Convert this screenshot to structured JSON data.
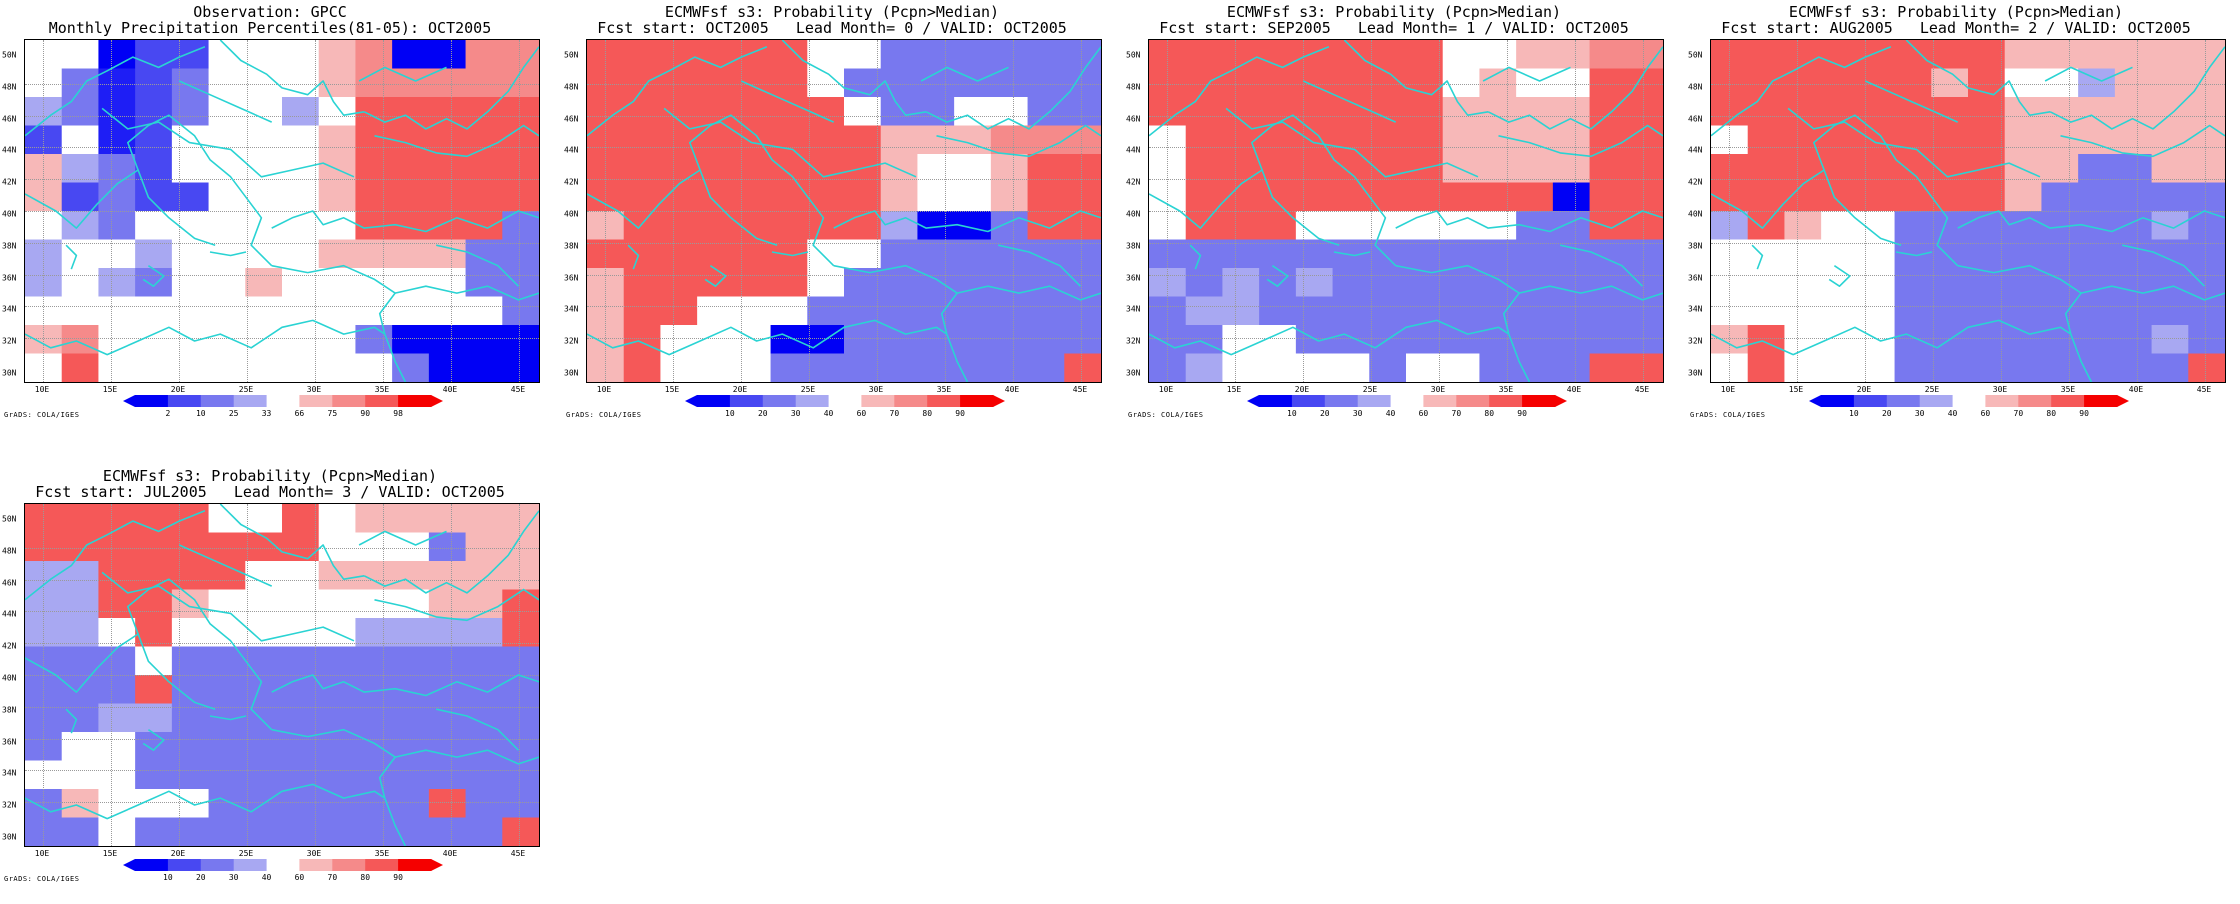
{
  "colors": {
    "coast": "#2ad3d3",
    "palette": [
      "#0000f5",
      "#1e1ef5",
      "#4848f2",
      "#7878ef",
      "#a8a8f2",
      "#ffffff",
      "#ffffff",
      "#f7b8b8",
      "#f58a8a",
      "#f55858",
      "#f52626",
      "#f50000"
    ]
  },
  "axes": {
    "lat_labels": [
      "30N",
      "32N",
      "34N",
      "36N",
      "38N",
      "40N",
      "42N",
      "44N",
      "46N",
      "48N",
      "50N"
    ],
    "lon_labels": [
      "10E",
      "15E",
      "20E",
      "25E",
      "30E",
      "35E",
      "40E",
      "45E"
    ]
  },
  "credit": "GrADS: COLA/IGES",
  "colorbars": {
    "obs": [
      "2",
      "10",
      "25",
      "33",
      "66",
      "75",
      "90",
      "98"
    ],
    "prob": [
      "10",
      "20",
      "30",
      "40",
      "60",
      "70",
      "80",
      "90"
    ]
  },
  "panels": [
    {
      "title1": "Observation: GPCC",
      "title2": "Monthly Precipitation Percentiles(81-05): OCT2005",
      "colorbar": "obs",
      "grid": [
        "55022556780088",
        "53123555788888",
        "43123554599999",
        "25125555799999",
        "74325555799999",
        "72322555799999",
        "54355555599993",
        "45545555777733",
        "45435575555533",
        "55555555555553",
        "78555555530000",
        "59555555553000"
      ]
    },
    {
      "title1": "ECMWFsf s3: Probability (Pcpn>Median)",
      "title2": "Fcst start: OCT2005   Lead Month= 0 / VALID: OCT2005",
      "colorbar": "prob",
      "grid": [
        "99999955333333",
        "99999953333333",
        "99999995335533",
        "99999999777888",
        "99999999755799",
        "99999999755799",
        "79999999400399",
        "99999955333333",
        "79999953333333",
        "79955533333333",
        "79555003333333",
        "79555333333339"
      ]
    },
    {
      "title1": "ECMWFsf s3: Probability (Pcpn>Median)",
      "title2": "Fcst start: SEP2005   Lead Month= 1 / VALID: OCT2005",
      "colorbar": "prob",
      "grid": [
        "99999999557788",
        "99999999575599",
        "99999999777799",
        "59999999777799",
        "59999999777799",
        "59999999999099",
        "59995555553399",
        "33333333333333",
        "43434333333333",
        "34433333333333",
        "33553333333333",
        "34555535533399"
      ]
    },
    {
      "title1": "ECMWFsf s3: Probability (Pcpn>Median)",
      "title2": "Fcst start: AUG2005   Lead Month= 2 / VALID: OCT2005",
      "colorbar": "prob",
      "grid": [
        "99999999777777",
        "99999979554777",
        "99999999777777",
        "59999999777777",
        "99999999773377",
        "99999999733333",
        "49755333333343",
        "55555333333333",
        "55555333333333",
        "55555333333333",
        "79555333333343",
        "59555333333339"
      ]
    },
    {
      "title1": "ECMWFsf s3: Probability (Pcpn>Median)",
      "title2": "Fcst start: JUL2005   Lead Month= 3 / VALID: OCT2005",
      "colorbar": "prob",
      "grid": [
        "99999559577777",
        "99999999555377",
        "44999955777777",
        "44997555555779",
        "44595555544449",
        "33353333333333",
        "33393333333333",
        "33443333333333",
        "35533333333333",
        "55533333333333",
        "37555333333933",
        "33533333333339"
      ]
    }
  ]
}
